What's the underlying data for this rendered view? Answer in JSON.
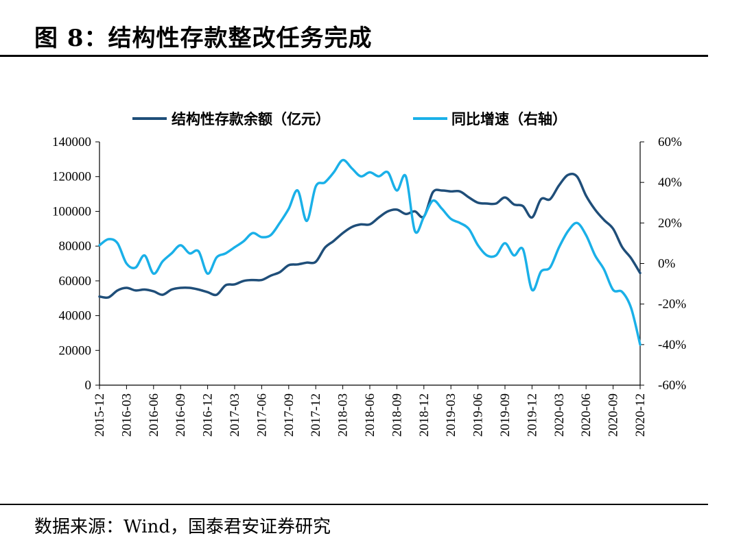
{
  "header": {
    "figure_title": "图 8：结构性存款整改任务完成"
  },
  "footer": {
    "source": "数据来源：Wind，国泰君安证券研究"
  },
  "colors": {
    "balance": "#1f4e79",
    "growth": "#1ab0e8"
  },
  "chart_data": {
    "type": "line",
    "title": "",
    "xlabel": "",
    "ylabel": "",
    "x_ticks": [
      "2015-12",
      "2016-03",
      "2016-06",
      "2016-09",
      "2016-12",
      "2017-03",
      "2017-06",
      "2017-09",
      "2017-12",
      "2018-03",
      "2018-06",
      "2018-09",
      "2018-12",
      "2019-03",
      "2019-06",
      "2019-09",
      "2019-12",
      "2020-03",
      "2020-06",
      "2020-09",
      "2020-12"
    ],
    "y_left": {
      "ylim": [
        0,
        140000
      ],
      "ticks": [
        "0",
        "20000",
        "40000",
        "60000",
        "80000",
        "100000",
        "120000",
        "140000"
      ]
    },
    "y_right": {
      "ylim": [
        -60,
        60
      ],
      "ticks": [
        "-60%",
        "-40%",
        "-20%",
        "0%",
        "20%",
        "40%",
        "60%"
      ]
    },
    "legend": {
      "position": "top-center",
      "grid": false
    },
    "x": [
      "2015-12",
      "2016-01",
      "2016-02",
      "2016-03",
      "2016-04",
      "2016-05",
      "2016-06",
      "2016-07",
      "2016-08",
      "2016-09",
      "2016-10",
      "2016-11",
      "2016-12",
      "2017-01",
      "2017-02",
      "2017-03",
      "2017-04",
      "2017-05",
      "2017-06",
      "2017-07",
      "2017-08",
      "2017-09",
      "2017-10",
      "2017-11",
      "2017-12",
      "2018-01",
      "2018-02",
      "2018-03",
      "2018-04",
      "2018-05",
      "2018-06",
      "2018-07",
      "2018-08",
      "2018-09",
      "2018-10",
      "2018-11",
      "2018-12",
      "2019-01",
      "2019-02",
      "2019-03",
      "2019-04",
      "2019-05",
      "2019-06",
      "2019-07",
      "2019-08",
      "2019-09",
      "2019-10",
      "2019-11",
      "2019-12",
      "2020-01",
      "2020-02",
      "2020-03",
      "2020-04",
      "2020-05",
      "2020-06",
      "2020-07",
      "2020-08",
      "2020-09",
      "2020-10",
      "2020-11",
      "2020-12"
    ],
    "series": [
      {
        "name": "结构性存款余额（亿元）",
        "axis": "left",
        "values": [
          51000,
          50500,
          54500,
          56000,
          54500,
          55000,
          54000,
          52000,
          55000,
          56000,
          56000,
          55000,
          53500,
          52000,
          57500,
          58000,
          60000,
          60500,
          60500,
          63000,
          65000,
          69000,
          69500,
          70500,
          71000,
          79000,
          83000,
          87500,
          91000,
          92500,
          92500,
          96500,
          100000,
          101000,
          98500,
          100000,
          97000,
          111000,
          112000,
          111500,
          111500,
          108000,
          105000,
          104500,
          104500,
          108000,
          104000,
          103000,
          96500,
          107000,
          107000,
          115000,
          121000,
          120000,
          109000,
          101000,
          95000,
          90000,
          79500,
          73000,
          64500
        ]
      },
      {
        "name": "同比增速（右轴）",
        "axis": "right",
        "values": [
          9,
          12,
          10,
          0,
          -2,
          4,
          -5,
          1,
          5,
          9,
          5,
          6,
          -5,
          3,
          5,
          8,
          11,
          15,
          13,
          14,
          20,
          27,
          36,
          21,
          38,
          40,
          45,
          51,
          47,
          43,
          45,
          43,
          45,
          36,
          43,
          16,
          23,
          31,
          27,
          22,
          20,
          17,
          9,
          4,
          4,
          10,
          4,
          7,
          -13,
          -4,
          -2,
          8,
          16,
          20,
          14,
          4,
          -3,
          -13,
          -14,
          -22,
          -40
        ]
      }
    ]
  }
}
